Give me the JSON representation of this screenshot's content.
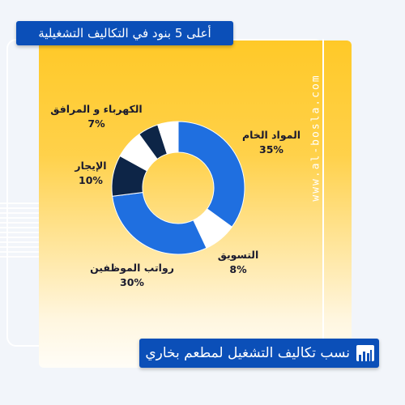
{
  "header": {
    "title": "أعلى 5 بنود في التكاليف التشغيلية"
  },
  "footer": {
    "caption": "نسب تكاليف التشغيل لمطعم بخاري"
  },
  "watermark": {
    "site": "www.al-bosla.com"
  },
  "colors": {
    "card_top": "#ffc928",
    "accent": "#0b4fb8",
    "blue": "#1f6fe0",
    "navy": "#0d2547",
    "white": "#ffffff"
  },
  "chart_data": {
    "type": "pie",
    "donut": true,
    "slices": [
      {
        "label": "المواد الخام",
        "value": 35,
        "value_label": "35%",
        "color": "#1f6fe0"
      },
      {
        "label": "التسويق",
        "value": 8,
        "value_label": "8%",
        "color": "#ffffff"
      },
      {
        "label": "رواتب الموظفين",
        "value": 30,
        "value_label": "30%",
        "color": "#1f6fe0"
      },
      {
        "label": "الإيجار",
        "value": 10,
        "value_label": "10%",
        "color": "#0d2547"
      },
      {
        "label": "الكهرباء و المرافق",
        "value": 7,
        "value_label": "7%",
        "color": "#ffffff"
      },
      {
        "label": "",
        "value": 5,
        "value_label": "",
        "color": "#0d2547"
      },
      {
        "label": "",
        "value": 5,
        "value_label": "",
        "color": "#ffffff"
      }
    ]
  }
}
